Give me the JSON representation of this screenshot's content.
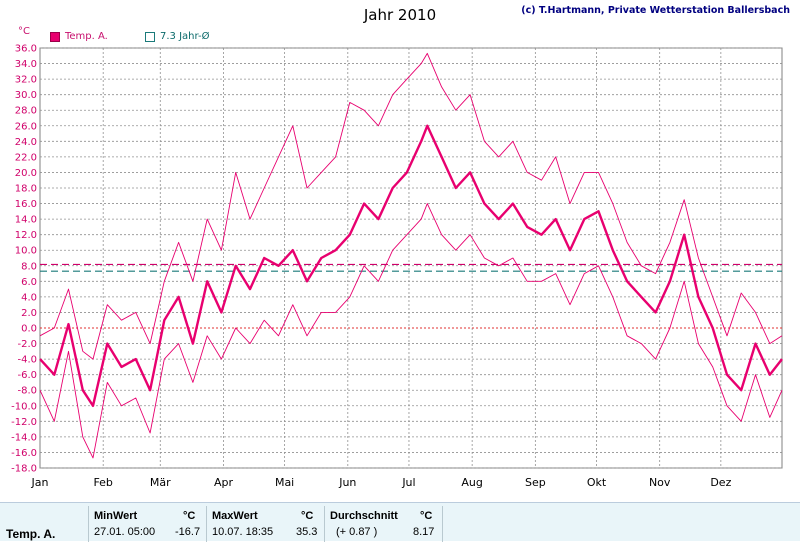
{
  "title": "Jahr 2010",
  "copyright": "(c) T.Hartmann, Private Wetterstation Ballersbach",
  "y_unit": "°C",
  "legend": [
    {
      "label": "Temp. A.",
      "color": "#e8006f"
    },
    {
      "label": "7.3 Jahr-Ø",
      "color": "#1a7a7a"
    }
  ],
  "chart_data": {
    "type": "line",
    "x_ticks": [
      "Jan",
      "Feb",
      "Mär",
      "Apr",
      "Mai",
      "Jun",
      "Jul",
      "Aug",
      "Sep",
      "Okt",
      "Nov",
      "Dez"
    ],
    "ylim": [
      -18,
      36
    ],
    "y_ticks": [
      "36.0",
      "34.0",
      "32.0",
      "30.0",
      "28.0",
      "26.0",
      "24.0",
      "22.0",
      "20.0",
      "18.0",
      "16.0",
      "14.0",
      "12.0",
      "10.0",
      "8.0",
      "6.0",
      "4.0",
      "2.0",
      "0.0",
      "-2.0",
      "-4.0",
      "-6.0",
      "-8.0",
      "-10.0",
      "-12.0",
      "-14.0",
      "-16.0",
      "-18.0"
    ],
    "grid": true,
    "reference_lines": [
      {
        "name": "7.3 Jahr-Ø",
        "y": 7.3,
        "color": "#1a7a7a",
        "style": "dashed"
      },
      {
        "y": 8.17,
        "color": "#d0006a",
        "style": "dashed"
      },
      {
        "y": 0,
        "color": "#e03030",
        "style": "dotted"
      }
    ],
    "series": [
      {
        "name": "Temp. A.",
        "color": "#e8006f",
        "x": [
          1,
          8,
          15,
          22,
          27,
          34,
          41,
          48,
          55,
          62,
          69,
          76,
          83,
          90,
          97,
          104,
          111,
          118,
          125,
          132,
          139,
          146,
          153,
          160,
          167,
          174,
          181,
          188,
          191,
          198,
          205,
          212,
          219,
          226,
          233,
          240,
          247,
          254,
          261,
          268,
          275,
          282,
          289,
          296,
          303,
          310,
          317,
          324,
          331,
          338,
          345,
          352,
          359,
          365
        ],
        "mean": [
          -4.0,
          -6.0,
          0.5,
          -8.0,
          -10.0,
          -2.0,
          -5.0,
          -4.0,
          -8.0,
          1.0,
          4.0,
          -2.0,
          6.0,
          2.0,
          8.0,
          5.0,
          9.0,
          8.0,
          10.0,
          6.0,
          9.0,
          10.0,
          12.0,
          16.0,
          14.0,
          18.0,
          20.0,
          24.0,
          26.0,
          22.0,
          18.0,
          20.0,
          16.0,
          14.0,
          16.0,
          13.0,
          12.0,
          14.0,
          10.0,
          14.0,
          15.0,
          10.0,
          6.0,
          4.0,
          2.0,
          6.0,
          12.0,
          4.0,
          0.0,
          -6.0,
          -8.0,
          -2.0,
          -6.0,
          -4.0
        ],
        "max": [
          -1.0,
          0.0,
          5.0,
          -3.0,
          -4.0,
          3.0,
          1.0,
          2.0,
          -2.0,
          6.0,
          11.0,
          6.0,
          14.0,
          10.0,
          20.0,
          14.0,
          18.0,
          22.0,
          26.0,
          18.0,
          20.0,
          22.0,
          29.0,
          28.0,
          26.0,
          30.0,
          32.0,
          34.0,
          35.3,
          31.0,
          28.0,
          30.0,
          24.0,
          22.0,
          24.0,
          20.0,
          19.0,
          22.0,
          16.0,
          20.0,
          20.0,
          16.0,
          11.0,
          8.0,
          7.0,
          11.0,
          16.5,
          9.0,
          4.0,
          -1.0,
          4.5,
          2.0,
          -2.0,
          -1.0
        ],
        "min": [
          -8.0,
          -12.0,
          -3.0,
          -14.0,
          -16.7,
          -7.0,
          -10.0,
          -9.0,
          -13.5,
          -4.0,
          -2.0,
          -7.0,
          -1.0,
          -4.0,
          0.0,
          -2.0,
          1.0,
          -1.0,
          3.0,
          -1.0,
          2.0,
          2.0,
          4.0,
          8.0,
          6.0,
          10.0,
          12.0,
          14.0,
          16.0,
          12.0,
          10.0,
          12.0,
          9.0,
          8.0,
          9.0,
          6.0,
          6.0,
          7.0,
          3.0,
          7.0,
          8.0,
          4.0,
          -1.0,
          -2.0,
          -4.0,
          0.0,
          6.0,
          -2.0,
          -5.0,
          -10.0,
          -12.0,
          -6.0,
          -11.5,
          -8.0
        ]
      }
    ]
  },
  "stats": {
    "row_label": "Temp. A.",
    "min_header": "MinWert",
    "min_unit": "°C",
    "min_date": "27.01.  05:00",
    "min_value": "-16.7",
    "max_header": "MaxWert",
    "max_unit": "°C",
    "max_date": "10.07.  18:35",
    "max_value": "35.3",
    "avg_header": "Durchschnitt",
    "avg_unit": "°C",
    "avg_diff": "(+ 0.87 )",
    "avg_value": "8.17"
  }
}
